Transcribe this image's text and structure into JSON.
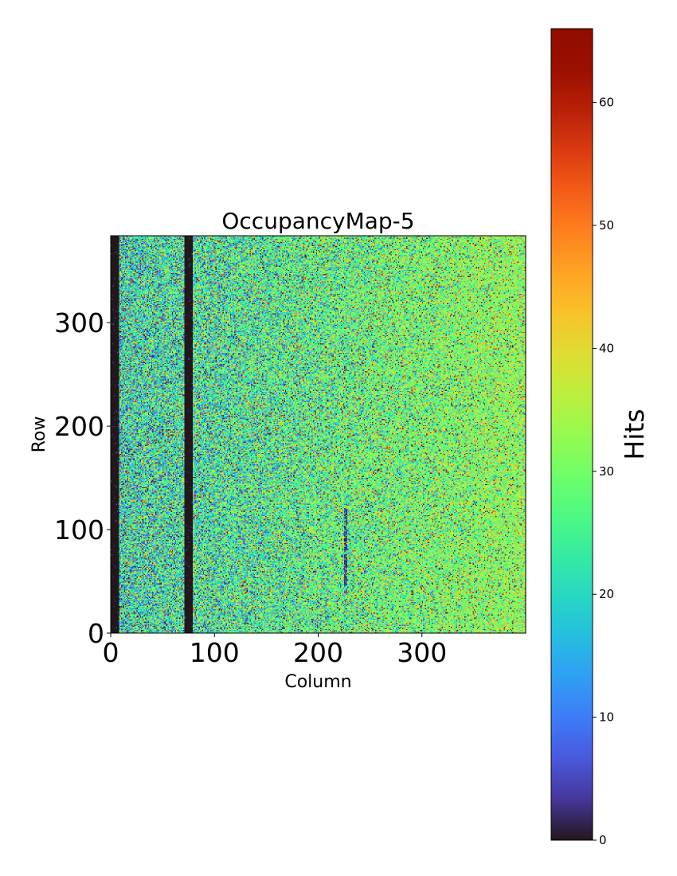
{
  "chart_data": {
    "type": "heatmap",
    "title": "OccupancyMap-5",
    "xlabel": "Column",
    "ylabel": "Row",
    "xlim": [
      0,
      400
    ],
    "ylim": [
      0,
      384
    ],
    "x_ticks": [
      {
        "value": 0,
        "label": "0"
      },
      {
        "value": 100,
        "label": "100"
      },
      {
        "value": 200,
        "label": "200"
      },
      {
        "value": 300,
        "label": "300"
      }
    ],
    "y_ticks": [
      {
        "value": 0,
        "label": "0"
      },
      {
        "value": 100,
        "label": "100"
      },
      {
        "value": 200,
        "label": "200"
      },
      {
        "value": 300,
        "label": "300"
      }
    ],
    "colorbar": {
      "label": "Hits",
      "range": [
        0,
        66
      ],
      "colormap": "turbo",
      "ticks": [
        {
          "value": 0,
          "label": "0"
        },
        {
          "value": 10,
          "label": "10"
        },
        {
          "value": 20,
          "label": "20"
        },
        {
          "value": 30,
          "label": "30"
        },
        {
          "value": 40,
          "label": "40"
        },
        {
          "value": 50,
          "label": "50"
        },
        {
          "value": 60,
          "label": "60"
        }
      ]
    },
    "features": {
      "dead_column_bands": [
        {
          "from": 0,
          "to": 8,
          "value": 0
        },
        {
          "from": 71,
          "to": 79,
          "value": 0
        }
      ],
      "low_occupancy_column": {
        "column": 226,
        "row_from": 45,
        "row_to": 120
      },
      "mean_hits_left": 22,
      "mean_hits_right": 32
    }
  }
}
